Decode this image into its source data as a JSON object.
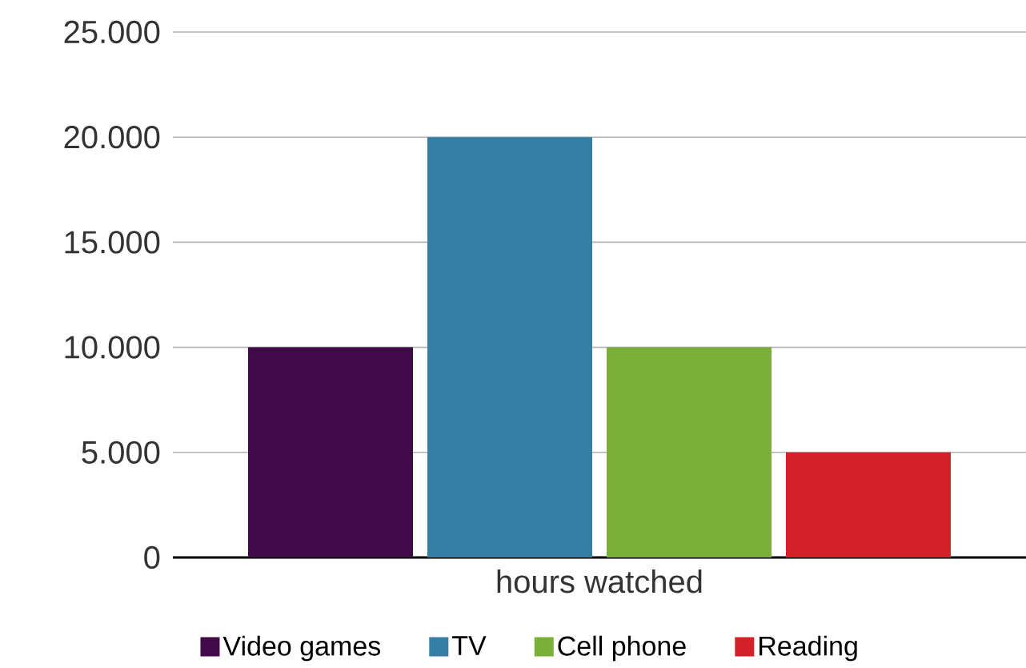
{
  "chart_data": {
    "type": "bar",
    "categories": [
      "hours watched"
    ],
    "series": [
      {
        "name": "Video games",
        "color": "#3f0a47",
        "values": [
          10000
        ]
      },
      {
        "name": "TV",
        "color": "#347fa3",
        "values": [
          20000
        ]
      },
      {
        "name": "Cell phone",
        "color": "#7aaf3a",
        "values": [
          10000
        ]
      },
      {
        "name": "Reading",
        "color": "#d42027",
        "values": [
          5000
        ]
      }
    ],
    "ylim": [
      0,
      25000
    ],
    "yticks": [
      {
        "value": 0,
        "label": "0"
      },
      {
        "value": 5000,
        "label": "5.000"
      },
      {
        "value": 10000,
        "label": "10.000"
      },
      {
        "value": 15000,
        "label": "15.000"
      },
      {
        "value": 20000,
        "label": "20.000"
      },
      {
        "value": 25000,
        "label": "25.000"
      }
    ],
    "grid": "y",
    "legend": "bottom"
  }
}
